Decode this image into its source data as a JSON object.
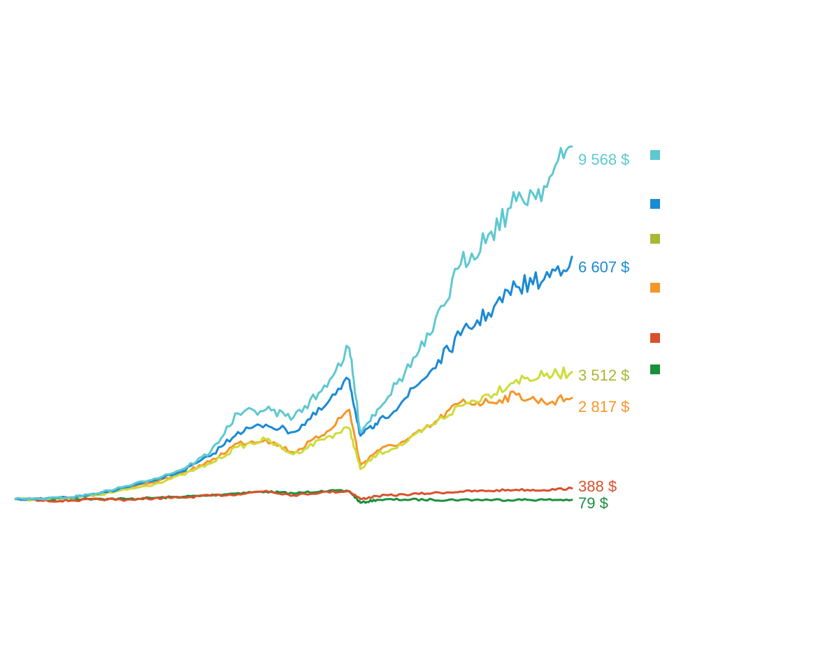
{
  "chart_data": {
    "type": "line",
    "title": "",
    "xlabel": "",
    "ylabel": "",
    "ylim": [
      0,
      10500
    ],
    "grid": false,
    "legend_position": "right",
    "x": [
      0,
      5,
      10,
      15,
      20,
      25,
      30,
      35,
      40,
      45,
      50,
      55,
      60,
      62,
      65,
      70,
      75,
      80,
      85,
      90,
      95,
      100
    ],
    "series": [
      {
        "end_label": "9 568 $",
        "color": "#5ec8d0",
        "values": [
          100,
          110,
          150,
          260,
          450,
          650,
          900,
          1350,
          2400,
          2500,
          2300,
          3000,
          4150,
          1900,
          2500,
          3500,
          4600,
          6400,
          7200,
          8100,
          8500,
          9568
        ]
      },
      {
        "end_label": "6 607 $",
        "color": "#1a8ad4",
        "values": [
          100,
          105,
          140,
          240,
          420,
          600,
          850,
          1250,
          1900,
          2100,
          1900,
          2500,
          3300,
          1800,
          2100,
          2800,
          3600,
          4500,
          5100,
          5800,
          6000,
          6607
        ]
      },
      {
        "end_label": "3 512 $",
        "color": "#a8b832",
        "line_color": "#cddc39",
        "values": [
          100,
          100,
          130,
          210,
          350,
          500,
          750,
          1050,
          1500,
          1700,
          1300,
          1700,
          2000,
          900,
          1300,
          1600,
          2100,
          2600,
          2900,
          3300,
          3400,
          3512
        ]
      },
      {
        "end_label": "2 817 $",
        "color": "#f5962a",
        "values": [
          100,
          100,
          140,
          230,
          400,
          540,
          800,
          1100,
          1600,
          1700,
          1350,
          1800,
          2500,
          1000,
          1400,
          1650,
          2100,
          2700,
          2700,
          2900,
          2700,
          2817
        ]
      },
      {
        "end_label": "388 $",
        "color": "#d9512c",
        "values": [
          100,
          50,
          60,
          90,
          80,
          120,
          140,
          190,
          230,
          320,
          200,
          280,
          310,
          100,
          180,
          220,
          260,
          300,
          320,
          350,
          340,
          388
        ]
      },
      {
        "end_label": "79 $",
        "color": "#1a8f3c",
        "values": [
          100,
          90,
          100,
          110,
          100,
          130,
          160,
          200,
          260,
          300,
          250,
          320,
          310,
          0,
          80,
          85,
          80,
          80,
          79,
          79,
          79,
          79
        ]
      }
    ]
  }
}
